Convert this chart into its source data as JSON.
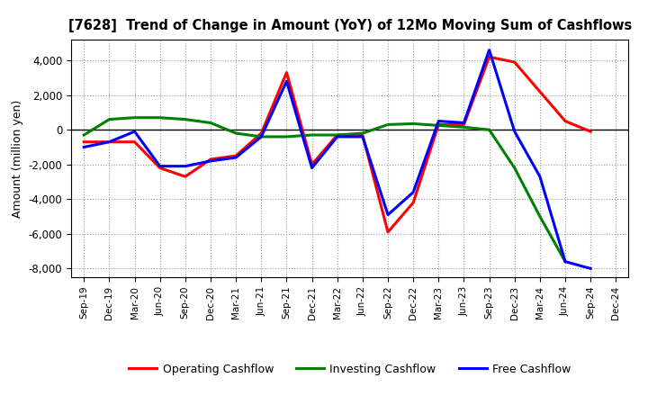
{
  "title": "[7628]  Trend of Change in Amount (YoY) of 12Mo Moving Sum of Cashflows",
  "ylabel": "Amount (million yen)",
  "background_color": "#ffffff",
  "plot_bg_color": "#ffffff",
  "grid_color": "#999999",
  "x_labels": [
    "Sep-19",
    "Dec-19",
    "Mar-20",
    "Jun-20",
    "Sep-20",
    "Dec-20",
    "Mar-21",
    "Jun-21",
    "Sep-21",
    "Dec-21",
    "Mar-22",
    "Jun-22",
    "Sep-22",
    "Dec-22",
    "Mar-23",
    "Jun-23",
    "Sep-23",
    "Dec-23",
    "Mar-24",
    "Jun-24",
    "Sep-24",
    "Dec-24"
  ],
  "operating": [
    -700,
    -700,
    -700,
    -2200,
    -2700,
    -1700,
    -1500,
    -200,
    3300,
    -2000,
    -300,
    -300,
    -5900,
    -4200,
    300,
    300,
    4200,
    3900,
    2200,
    500,
    -100,
    null
  ],
  "investing": [
    -300,
    600,
    700,
    700,
    600,
    400,
    -200,
    -400,
    -400,
    -300,
    -300,
    -200,
    300,
    350,
    250,
    150,
    0,
    -2200,
    -5000,
    -7600,
    null,
    null
  ],
  "free": [
    -1000,
    -700,
    -100,
    -2100,
    -2100,
    -1800,
    -1600,
    -400,
    2800,
    -2200,
    -400,
    -400,
    -4900,
    -3600,
    500,
    400,
    4600,
    -100,
    -2700,
    -7600,
    -8000,
    null
  ],
  "ylim": [
    -8500,
    5200
  ],
  "yticks": [
    -8000,
    -6000,
    -4000,
    -2000,
    0,
    2000,
    4000
  ],
  "operating_color": "#ff0000",
  "investing_color": "#008000",
  "free_color": "#0000ff",
  "line_width": 2.2
}
